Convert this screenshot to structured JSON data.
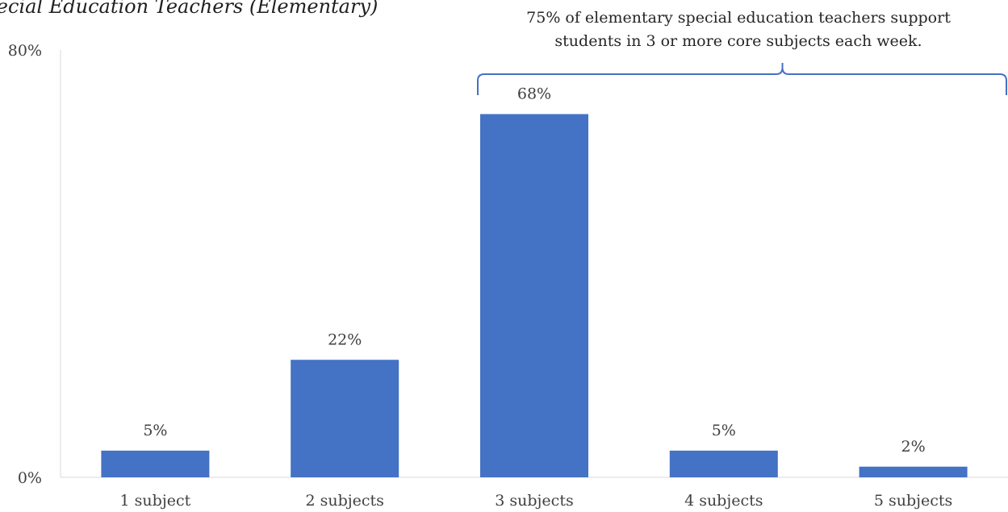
{
  "title": "Special Education Teachers (Elementary)",
  "chart_data": {
    "type": "bar",
    "title": "Special Education Teachers (Elementary)",
    "categories": [
      "1 subject",
      "2 subjects",
      "3 subjects",
      "4 subjects",
      "5 subjects"
    ],
    "values": [
      5,
      22,
      68,
      5,
      2
    ],
    "value_labels": [
      "5%",
      "22%",
      "68%",
      "5%",
      "2%"
    ],
    "ylim": [
      0,
      80
    ],
    "y_ticks": [
      "0%",
      "80%"
    ],
    "xlabel": "",
    "ylabel": "",
    "grid": false,
    "bar_color": "#4472C4",
    "annotation": {
      "text_line1": "75% of elementary special education teachers support",
      "text_line2": "students in 3 or more core subjects each week.",
      "spans_categories": [
        "3 subjects",
        "4 subjects",
        "5 subjects"
      ]
    }
  }
}
